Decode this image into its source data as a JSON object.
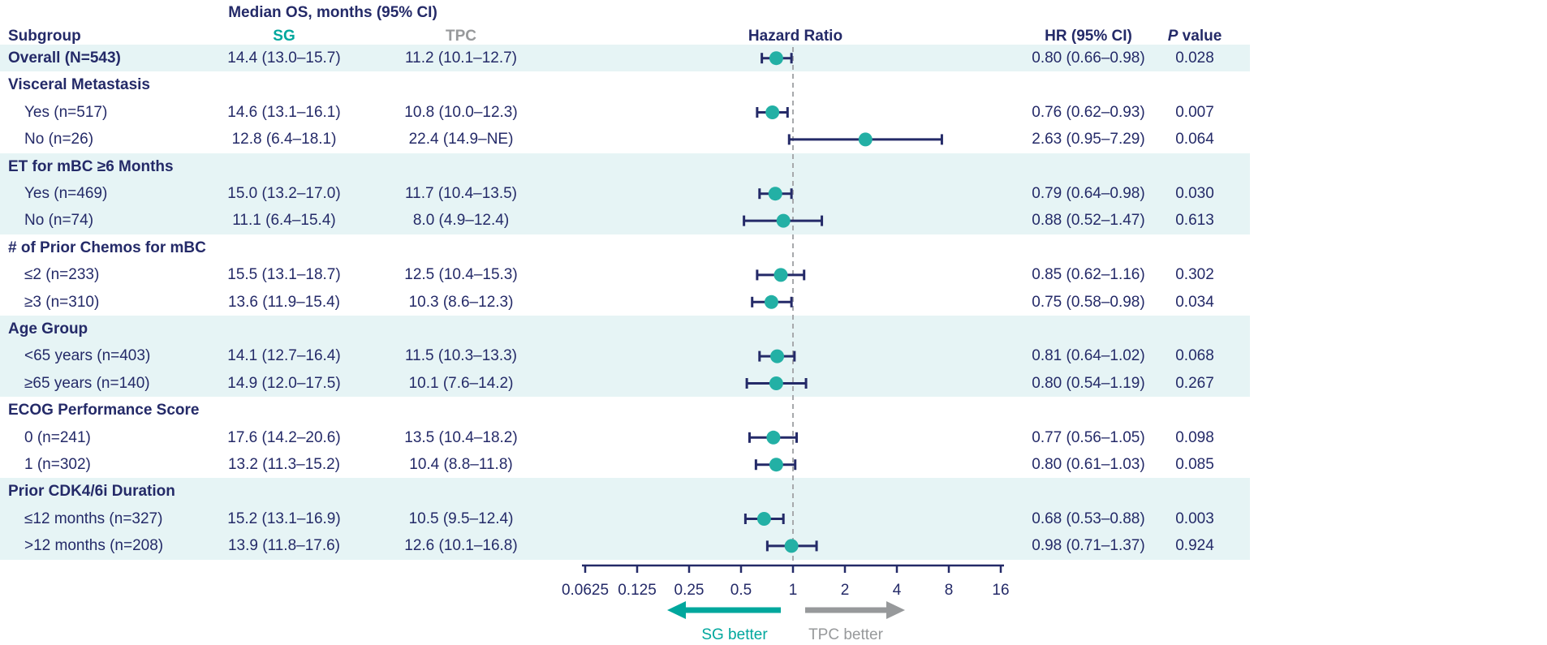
{
  "chart_data": {
    "type": "forest",
    "title": "Median OS, months (95% CI)",
    "column_headers": {
      "subgroup": "Subgroup",
      "sg": "SG",
      "tpc": "TPC",
      "hazard_ratio": "Hazard Ratio",
      "hr_ci": "HR (95% CI)",
      "p_italic": "P",
      "p_rest": " value"
    },
    "x_axis": {
      "scale": "log2",
      "ticks": [
        0.0625,
        0.125,
        0.25,
        0.5,
        1,
        2,
        4,
        8,
        16
      ],
      "tick_labels": [
        "0.0625",
        "0.125",
        "0.25",
        "0.5",
        "1",
        "2",
        "4",
        "8",
        "16"
      ],
      "reference_line": 1
    },
    "legend": {
      "left_arrow_label": "SG better",
      "right_arrow_label": "TPC better"
    },
    "rows": [
      {
        "kind": "overall",
        "label": "Overall (N=543)",
        "sg": "14.4 (13.0–15.7)",
        "tpc": "11.2 (10.1–12.7)",
        "hr_text": "0.80 (0.66–0.98)",
        "p": "0.028",
        "hr": 0.8,
        "lo": 0.66,
        "hi": 0.98,
        "shaded": true
      },
      {
        "kind": "group",
        "label": "Visceral Metastasis",
        "shaded": false
      },
      {
        "kind": "item",
        "label": "Yes (n=517)",
        "sg": "14.6 (13.1–16.1)",
        "tpc": "10.8 (10.0–12.3)",
        "hr_text": "0.76 (0.62–0.93)",
        "p": "0.007",
        "hr": 0.76,
        "lo": 0.62,
        "hi": 0.93,
        "shaded": false
      },
      {
        "kind": "item",
        "label": "No (n=26)",
        "sg": "12.8 (6.4–18.1)",
        "tpc": "22.4 (14.9–NE)",
        "hr_text": "2.63 (0.95–7.29)",
        "p": "0.064",
        "hr": 2.63,
        "lo": 0.95,
        "hi": 7.29,
        "shaded": false
      },
      {
        "kind": "group",
        "label": "ET for mBC ≥6 Months",
        "shaded": true
      },
      {
        "kind": "item",
        "label": "Yes (n=469)",
        "sg": "15.0 (13.2–17.0)",
        "tpc": "11.7 (10.4–13.5)",
        "hr_text": "0.79 (0.64–0.98)",
        "p": "0.030",
        "hr": 0.79,
        "lo": 0.64,
        "hi": 0.98,
        "shaded": true
      },
      {
        "kind": "item",
        "label": "No (n=74)",
        "sg": "11.1 (6.4–15.4)",
        "tpc": "8.0 (4.9–12.4)",
        "hr_text": "0.88 (0.52–1.47)",
        "p": "0.613",
        "hr": 0.88,
        "lo": 0.52,
        "hi": 1.47,
        "shaded": true
      },
      {
        "kind": "group",
        "label": "# of Prior Chemos for mBC",
        "shaded": false
      },
      {
        "kind": "item",
        "label": "≤2 (n=233)",
        "sg": "15.5 (13.1–18.7)",
        "tpc": "12.5 (10.4–15.3)",
        "hr_text": "0.85 (0.62–1.16)",
        "p": "0.302",
        "hr": 0.85,
        "lo": 0.62,
        "hi": 1.16,
        "shaded": false
      },
      {
        "kind": "item",
        "label": "≥3 (n=310)",
        "sg": "13.6 (11.9–15.4)",
        "tpc": "10.3 (8.6–12.3)",
        "hr_text": "0.75 (0.58–0.98)",
        "p": "0.034",
        "hr": 0.75,
        "lo": 0.58,
        "hi": 0.98,
        "shaded": false
      },
      {
        "kind": "group",
        "label": "Age Group",
        "shaded": true
      },
      {
        "kind": "item",
        "label": "<65 years (n=403)",
        "sg": "14.1 (12.7–16.4)",
        "tpc": "11.5 (10.3–13.3)",
        "hr_text": "0.81 (0.64–1.02)",
        "p": "0.068",
        "hr": 0.81,
        "lo": 0.64,
        "hi": 1.02,
        "shaded": true
      },
      {
        "kind": "item",
        "label": "≥65 years (n=140)",
        "sg": "14.9 (12.0–17.5)",
        "tpc": "10.1 (7.6–14.2)",
        "hr_text": "0.80 (0.54–1.19)",
        "p": "0.267",
        "hr": 0.8,
        "lo": 0.54,
        "hi": 1.19,
        "shaded": true
      },
      {
        "kind": "group",
        "label": "ECOG Performance Score",
        "shaded": false
      },
      {
        "kind": "item",
        "label": "0 (n=241)",
        "sg": "17.6 (14.2–20.6)",
        "tpc": "13.5 (10.4–18.2)",
        "hr_text": "0.77 (0.56–1.05)",
        "p": "0.098",
        "hr": 0.77,
        "lo": 0.56,
        "hi": 1.05,
        "shaded": false
      },
      {
        "kind": "item",
        "label": "1 (n=302)",
        "sg": "13.2 (11.3–15.2)",
        "tpc": "10.4 (8.8–11.8)",
        "hr_text": "0.80 (0.61–1.03)",
        "p": "0.085",
        "hr": 0.8,
        "lo": 0.61,
        "hi": 1.03,
        "shaded": false
      },
      {
        "kind": "group",
        "label": "Prior CDK4/6i Duration",
        "shaded": true
      },
      {
        "kind": "item",
        "label": "≤12 months (n=327)",
        "sg": "15.2 (13.1–16.9)",
        "tpc": "10.5 (9.5–12.4)",
        "hr_text": "0.68 (0.53–0.88)",
        "p": "0.003",
        "hr": 0.68,
        "lo": 0.53,
        "hi": 0.88,
        "shaded": true
      },
      {
        "kind": "item",
        "label": ">12 months (n=208)",
        "sg": "13.9 (11.8–17.6)",
        "tpc": "12.6 (10.1–16.8)",
        "hr_text": "0.98 (0.71–1.37)",
        "p": "0.924",
        "hr": 0.98,
        "lo": 0.71,
        "hi": 1.37,
        "shaded": true
      }
    ]
  },
  "colors": {
    "navy": "#242A68",
    "teal": "#00A79D",
    "dot_teal": "#23B0A5",
    "gray": "#97999B",
    "band": "#E6F4F5",
    "dashed_line": "#A7A9AC"
  }
}
